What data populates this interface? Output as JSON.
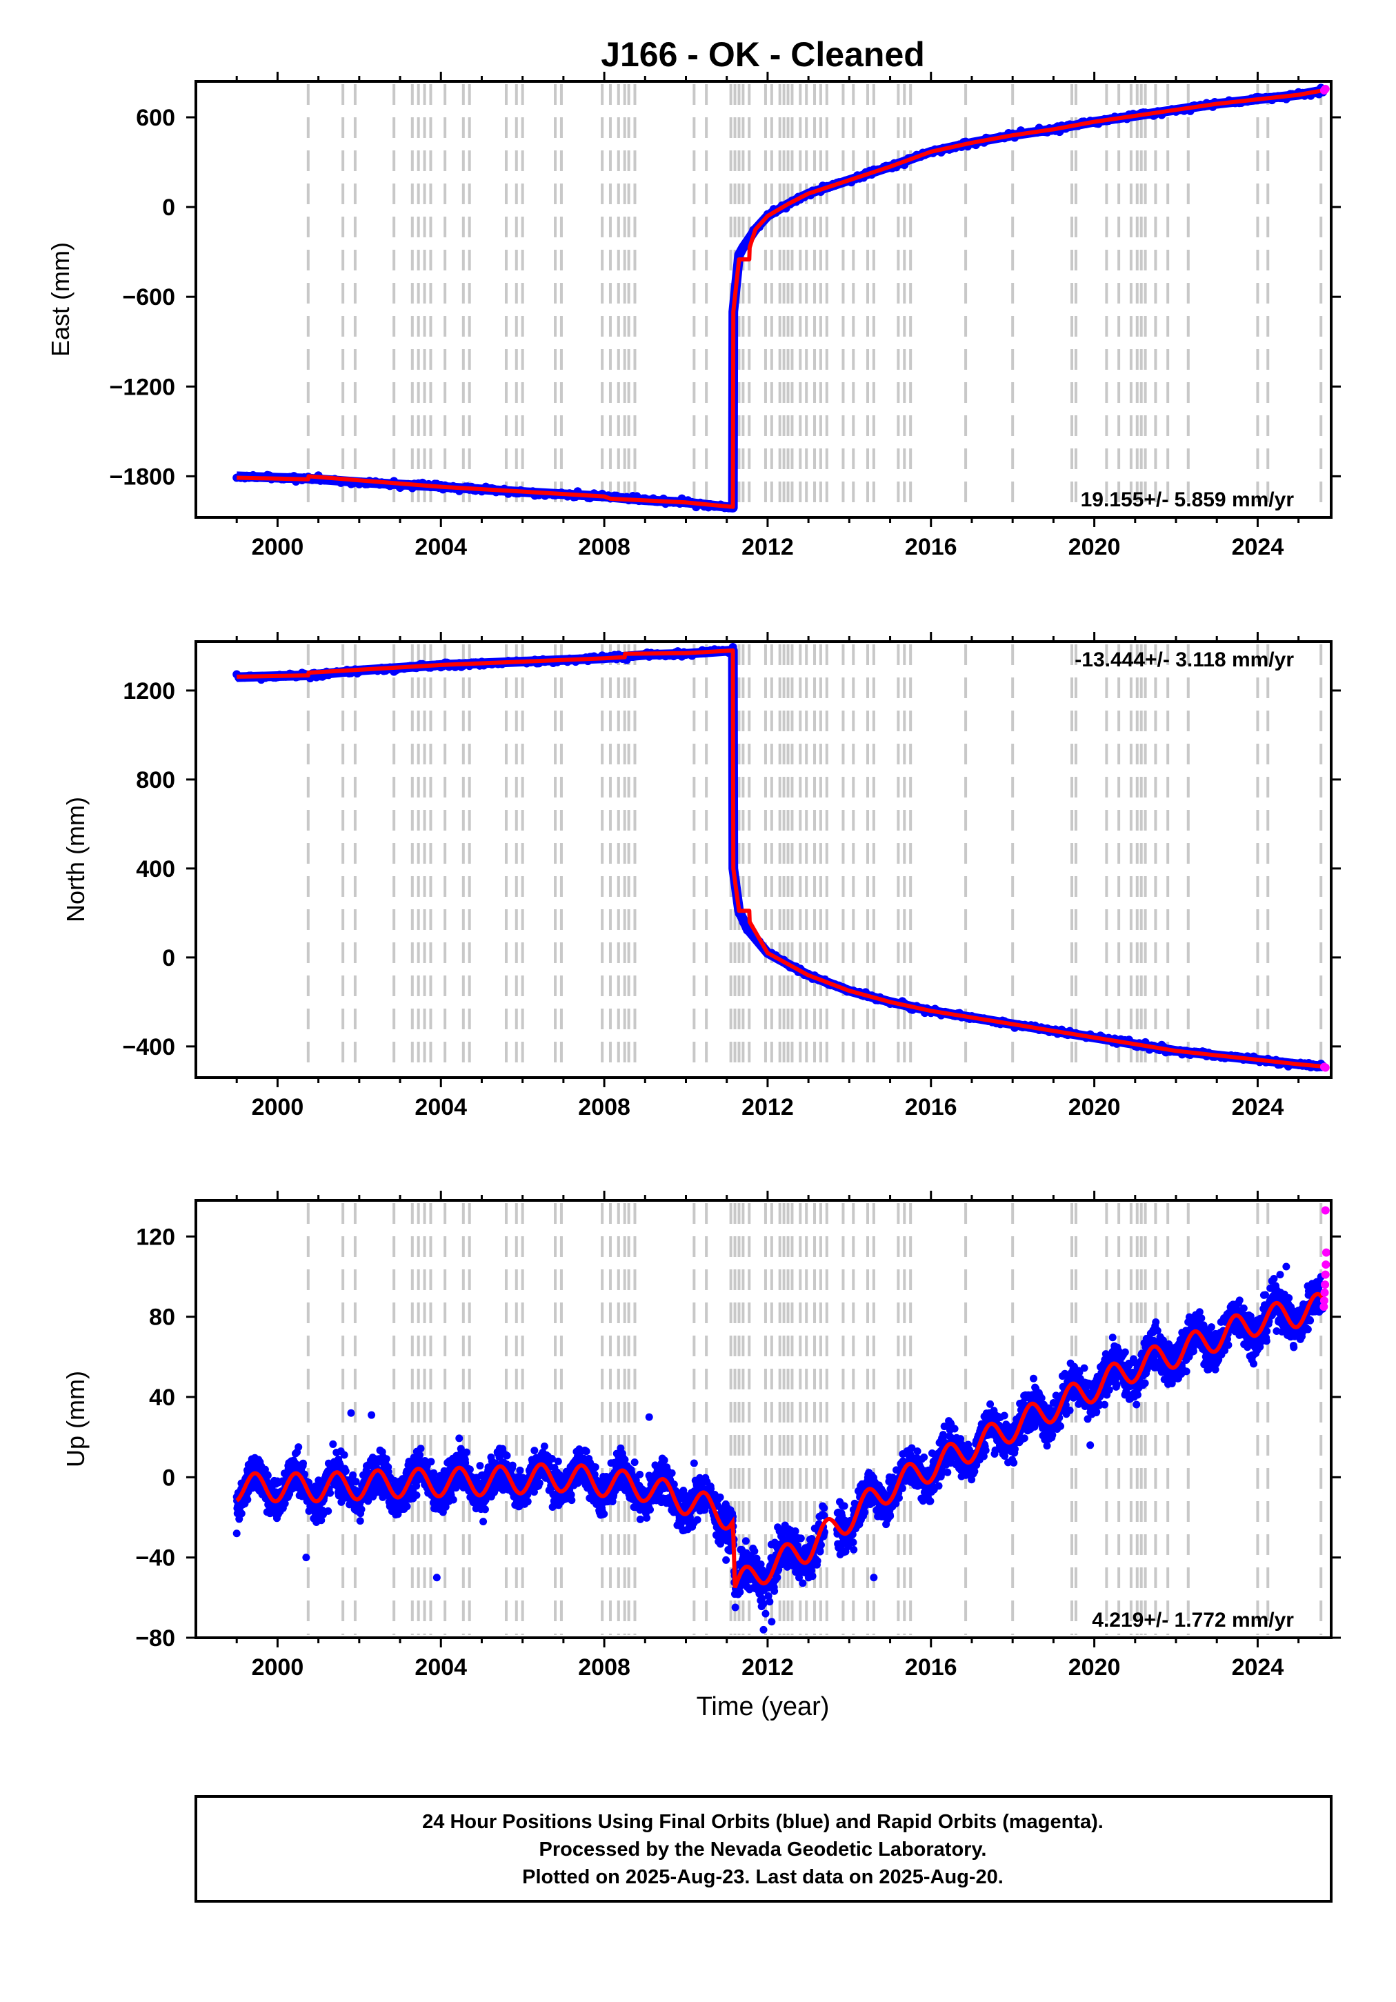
{
  "chart_data": {
    "type": "scatter",
    "title": "J166  - OK - Cleaned",
    "x_axis": {
      "label": "Time (year)",
      "range": [
        1998.0,
        2025.8
      ],
      "ticks": [
        2000,
        2004,
        2008,
        2012,
        2016,
        2020,
        2024
      ]
    },
    "legend": "none",
    "colors": {
      "final_orbits": "#0000ff",
      "rapid_orbits": "#ff00ff",
      "model": "#ff0000",
      "steps": "#c8c8c8"
    },
    "step_epochs": [
      2000.75,
      2001.6,
      2001.9,
      2002.85,
      2003.3,
      2003.45,
      2003.6,
      2003.75,
      2004.1,
      2004.55,
      2004.7,
      2005.6,
      2005.85,
      2006.0,
      2006.8,
      2006.95,
      2007.95,
      2008.15,
      2008.35,
      2008.5,
      2008.6,
      2008.75,
      2010.2,
      2010.5,
      2011.1,
      2011.2,
      2011.3,
      2011.4,
      2011.55,
      2011.95,
      2012.1,
      2012.3,
      2012.4,
      2012.5,
      2012.6,
      2012.8,
      2012.95,
      2013.15,
      2013.3,
      2013.45,
      2013.85,
      2014.1,
      2014.45,
      2014.6,
      2015.2,
      2015.35,
      2015.5,
      2016.85,
      2018.0,
      2019.45,
      2019.55,
      2020.3,
      2020.6,
      2020.9,
      2021.05,
      2021.15,
      2021.25,
      2021.5,
      2021.8,
      2022.3,
      2024.0,
      2024.25,
      2025.55
    ],
    "panels": [
      {
        "component": "East",
        "ylabel": "East (mm)",
        "ylim": [
          -2075,
          840
        ],
        "yticks": [
          600,
          0,
          -600,
          -1200,
          -1800
        ],
        "rate_text": "19.155+/- 5.859 mm/yr",
        "series": [
          {
            "name": "final",
            "x": [
              1999.0,
              2000.0,
              2000.75,
              2002.0,
              2004.0,
              2006.0,
              2008.0,
              2009.0,
              2010.0,
              2011.15,
              2011.16,
              2011.3,
              2011.4,
              2011.5,
              2011.7,
              2012.0,
              2012.5,
              2013.0,
              2014.0,
              2015.0,
              2016.0,
              2017.0,
              2018.0,
              2019.0,
              2020.0,
              2021.0,
              2022.0,
              2023.0,
              2024.0,
              2025.0,
              2025.6
            ],
            "y": [
              -1800,
              -1810,
              -1815,
              -1840,
              -1870,
              -1905,
              -1935,
              -1960,
              -1975,
              -2010,
              -700,
              -320,
              -270,
              -230,
              -150,
              -60,
              20,
              90,
              180,
              270,
              370,
              430,
              480,
              520,
              570,
              610,
              650,
              690,
              720,
              750,
              780
            ]
          },
          {
            "name": "rapid",
            "x": [
              2025.63,
              2025.66
            ],
            "y": [
              780,
              790
            ]
          }
        ],
        "model": {
          "x": [
            1999.0,
            2000.75,
            2000.76,
            2004.0,
            2008.0,
            2008.15,
            2010.0,
            2011.15,
            2011.16,
            2011.3,
            2011.55,
            2011.56,
            2011.7,
            2012.0,
            2012.5,
            2013.0,
            2014.0,
            2015.0,
            2016.0,
            2017.0,
            2018.0,
            2019.0,
            2020.0,
            2021.0,
            2022.0,
            2023.0,
            2024.0,
            2025.0,
            2025.6
          ],
          "y": [
            -1810,
            -1820,
            -1800,
            -1870,
            -1935,
            -1950,
            -1975,
            -2005,
            -700,
            -350,
            -350,
            -270,
            -150,
            -60,
            20,
            90,
            180,
            270,
            370,
            430,
            480,
            520,
            570,
            610,
            650,
            690,
            720,
            750,
            780
          ]
        }
      },
      {
        "component": "North",
        "ylabel": "North (mm)",
        "ylim": [
          -540,
          1420
        ],
        "yticks": [
          1200,
          800,
          400,
          0,
          -400
        ],
        "rate_text": "-13.444+/- 3.118 mm/yr",
        "series": [
          {
            "name": "final",
            "x": [
              1999.0,
              2000.0,
              2000.75,
              2002.0,
              2004.0,
              2006.0,
              2008.0,
              2009.0,
              2010.0,
              2011.15,
              2011.16,
              2011.3,
              2011.5,
              2012.0,
              2013.0,
              2014.0,
              2015.0,
              2016.0,
              2017.0,
              2018.0,
              2019.0,
              2020.0,
              2021.0,
              2022.0,
              2023.0,
              2024.0,
              2025.0,
              2025.6
            ],
            "y": [
              1260,
              1265,
              1268,
              1290,
              1315,
              1330,
              1345,
              1360,
              1365,
              1380,
              400,
              210,
              130,
              20,
              -80,
              -150,
              -200,
              -240,
              -270,
              -300,
              -330,
              -360,
              -390,
              -420,
              -440,
              -460,
              -480,
              -490
            ]
          },
          {
            "name": "rapid",
            "x": [
              2025.63,
              2025.66
            ],
            "y": [
              -492,
              -495
            ]
          }
        ],
        "model": {
          "x": [
            1999.0,
            2000.75,
            2000.76,
            2004.0,
            2008.0,
            2008.5,
            2008.51,
            2010.0,
            2011.15,
            2011.16,
            2011.3,
            2011.55,
            2011.56,
            2012.0,
            2013.0,
            2014.0,
            2015.0,
            2016.0,
            2017.0,
            2018.0,
            2019.0,
            2020.0,
            2021.0,
            2022.0,
            2023.0,
            2024.0,
            2025.0,
            2025.6
          ],
          "y": [
            1262,
            1268,
            1280,
            1315,
            1345,
            1350,
            1365,
            1368,
            1380,
            400,
            210,
            210,
            160,
            20,
            -80,
            -150,
            -200,
            -240,
            -270,
            -300,
            -330,
            -360,
            -390,
            -420,
            -440,
            -460,
            -480,
            -490
          ]
        }
      },
      {
        "component": "Up",
        "ylabel": "Up (mm)",
        "ylim": [
          -80,
          138
        ],
        "yticks": [
          120,
          80,
          40,
          0,
          -40,
          -80
        ],
        "rate_text": "4.219+/- 1.772 mm/yr",
        "series": [
          {
            "name": "final",
            "x": [
              1999.0,
              2001.0,
              2003.0,
              2005.0,
              2007.0,
              2009.0,
              2010.5,
              2011.15,
              2011.2,
              2012.0,
              2013.0,
              2014.0,
              2015.0,
              2016.0,
              2017.0,
              2018.0,
              2019.0,
              2020.0,
              2021.0,
              2022.0,
              2023.0,
              2024.0,
              2025.0,
              2025.6
            ],
            "y": [
              -5,
              -5,
              -3,
              -2,
              0,
              -5,
              -15,
              -20,
              -55,
              -45,
              -35,
              -20,
              -5,
              5,
              15,
              25,
              35,
              45,
              55,
              62,
              70,
              78,
              82,
              85
            ]
          },
          {
            "name": "rapid",
            "x": [
              2025.62,
              2025.63,
              2025.64,
              2025.65,
              2025.66,
              2025.67,
              2025.68
            ],
            "y": [
              85,
              88,
              92,
              96,
              101,
              106,
              112
            ]
          }
        ],
        "model": {
          "amplitude": 7.0,
          "x": [
            1999.0,
            2001.0,
            2003.0,
            2005.0,
            2007.0,
            2009.0,
            2010.5,
            2011.15,
            2011.2,
            2012.0,
            2013.0,
            2014.0,
            2015.0,
            2016.0,
            2017.0,
            2018.0,
            2019.0,
            2020.0,
            2021.0,
            2022.0,
            2023.0,
            2024.0,
            2025.0,
            2025.6
          ],
          "y": [
            -5,
            -5,
            -3,
            -2,
            0,
            -5,
            -15,
            -20,
            -55,
            -45,
            -35,
            -20,
            -5,
            5,
            15,
            25,
            35,
            45,
            55,
            62,
            70,
            78,
            82,
            85
          ]
        },
        "outliers": [
          {
            "x": 2003.9,
            "y": -50
          },
          {
            "x": 2002.3,
            "y": 31
          },
          {
            "x": 2001.8,
            "y": 32
          },
          {
            "x": 2009.1,
            "y": 30
          },
          {
            "x": 2011.1,
            "y": -33
          },
          {
            "x": 2011.9,
            "y": -76
          },
          {
            "x": 2012.1,
            "y": -72
          },
          {
            "x": 2011.95,
            "y": -68
          },
          {
            "x": 2014.6,
            "y": -50
          },
          {
            "x": 2019.9,
            "y": 16
          },
          {
            "x": 2024.7,
            "y": 105
          },
          {
            "x": 2024.55,
            "y": 101
          },
          {
            "x": 2010.2,
            "y": 7
          },
          {
            "x": 1999.0,
            "y": -28
          },
          {
            "x": 2000.7,
            "y": -40
          }
        ]
      }
    ]
  },
  "footer": {
    "line1": "24 Hour Positions Using Final Orbits (blue) and Rapid Orbits (magenta).",
    "line2": "Processed by the Nevada Geodetic Laboratory.",
    "line3": "Plotted on 2025-Aug-23. Last data on 2025-Aug-20."
  }
}
